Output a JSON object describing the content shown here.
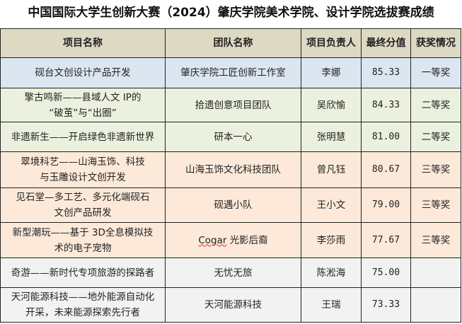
{
  "title": "中国国际大学生创新大赛（2024）肇庆学院美术学院、设计学院选拔赛成绩",
  "headers": [
    "项目名称",
    "团队名称",
    "项目负责人",
    "最终分值",
    "获奖情况"
  ],
  "row_colors": {
    "first": "#dce6f1",
    "second": "#ebf1de",
    "third": "#fde9d9",
    "none": "#f2f2f2"
  },
  "rows": [
    {
      "project": "砚台文创设计产品开发",
      "team": "肇庆学院工匠创新工作室",
      "leader": "李娜",
      "score": "85.33",
      "award": "一等奖"
    },
    {
      "project": "擎古鸣新——县域人文 IP的\n“破茧”与“出圈”",
      "team": "拾遗创意项目团队",
      "leader": "吴欣愉",
      "score": "84.33",
      "award": "二等奖"
    },
    {
      "project": "非遗新生——开启绿色非遗新世界",
      "team": "研本一心",
      "leader": "张明慧",
      "score": "81.00",
      "award": "二等奖"
    },
    {
      "project": "翠境科艺——山海玉饰、科技\n与玉雕设计文创开发",
      "team": "山海玉饰文化科技团队",
      "leader": "曾凡钰",
      "score": "80.67",
      "award": "三等奖"
    },
    {
      "project": "见石堂—多工艺、多元化端砚石\n文创产品研发",
      "team": "砚遇小队",
      "leader": "王小文",
      "score": "79.00",
      "award": "三等奖"
    },
    {
      "project": "新型潮玩——基于 3D全息模拟技\n术的电子宠物",
      "team_a": "Cogar",
      "team_b": " 光影后裔",
      "leader": "李莎雨",
      "score": "77.67",
      "award": "三等奖"
    },
    {
      "project": "奇游——新时代专项旅游的探路者",
      "team": "无忧无旅",
      "leader": "陈淞海",
      "score": "75.00",
      "award": ""
    },
    {
      "project": "天河能源科技——地外能源自动化\n开采，未来能源探索先行者",
      "team": "天河能源科技",
      "leader": "王瑞",
      "score": "73.33",
      "award": ""
    }
  ]
}
